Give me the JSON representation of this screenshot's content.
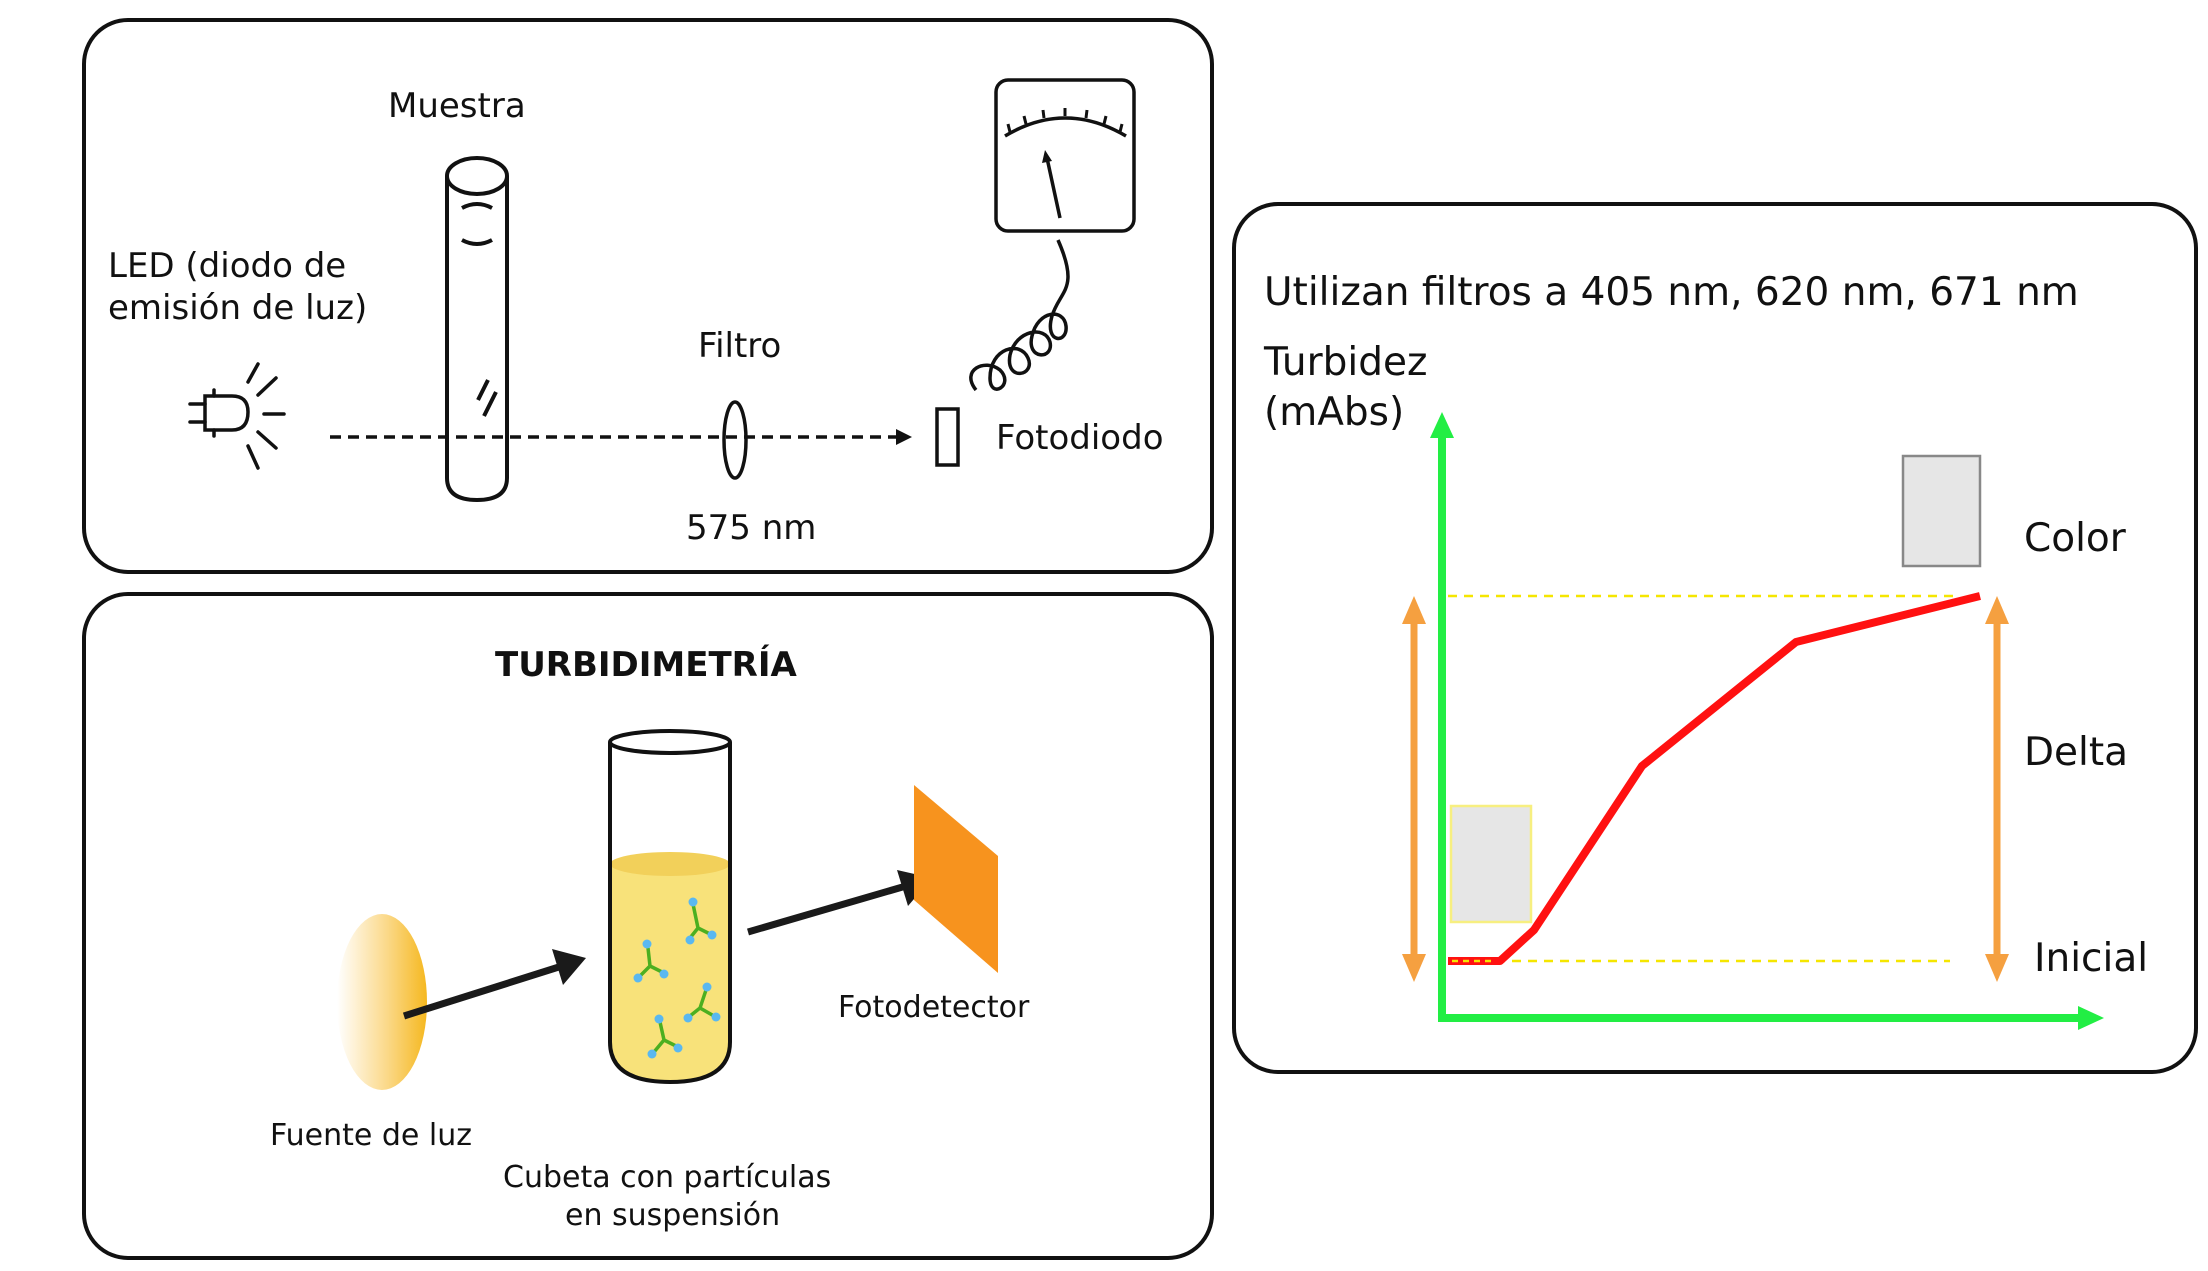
{
  "photometer": {
    "sample_label": "Muestra",
    "led_label_line1": "LED (diodo de",
    "led_label_line2": "emisión de luz)",
    "filter_label": "Filtro",
    "wavelength_label": "575 nm",
    "photodiode_label": "Fotodiodo"
  },
  "turbidimetry": {
    "title": "TURBIDIMETRÍA",
    "light_source_label": "Fuente de luz",
    "cuvette_label_line1": "Cubeta con partículas",
    "cuvette_label_line2": "en suspensión",
    "photodetector_label": "Fotodetector"
  },
  "graph": {
    "filters_note": "Utilizan filtros a 405 nm, 620 nm, 671 nm",
    "y_label_line1": "Turbidez",
    "y_label_line2": "(mAbs)",
    "color_label": "Color",
    "delta_label": "Delta",
    "initial_label": "Inicial",
    "colors": {
      "axis": "#22ee44",
      "curve": "#ff1111",
      "arrows": "#f5a040",
      "guides": "#f5e600",
      "boxes": "#e6e6e6"
    }
  }
}
